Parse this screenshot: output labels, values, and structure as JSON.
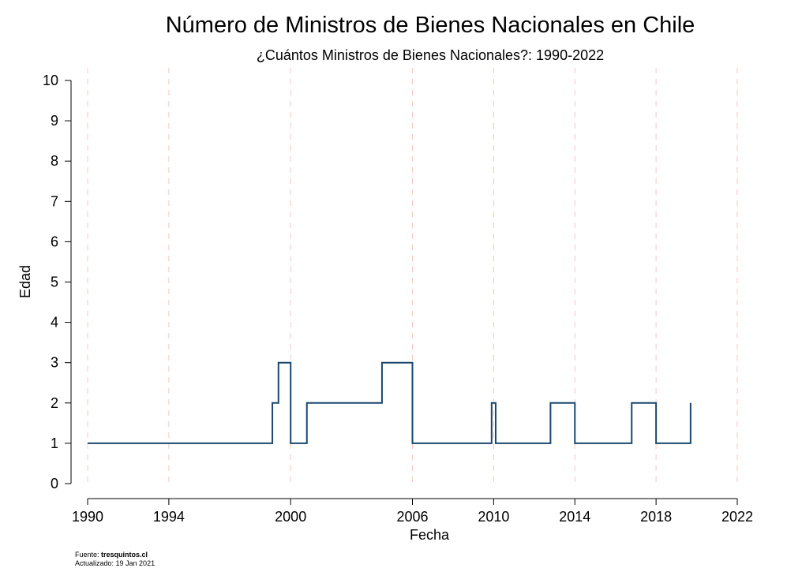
{
  "chart_data": {
    "type": "line",
    "step": true,
    "title": "Número de Ministros de Bienes Nacionales en Chile",
    "subtitle": "¿Cuántos Ministros de Bienes Nacionales?: 1990-2022",
    "xlabel": "Fecha",
    "ylabel": "Edad",
    "xlim": [
      1990,
      2022
    ],
    "ylim": [
      0,
      10
    ],
    "xticks": [
      "1990",
      "1994",
      "2000",
      "2006",
      "2010",
      "2014",
      "2018",
      "2022"
    ],
    "yticks": [
      "0",
      "1",
      "2",
      "3",
      "4",
      "5",
      "6",
      "7",
      "8",
      "9",
      "10"
    ],
    "grid": "vertical dashed at x ticks",
    "line_color": "#1a476f",
    "grid_color": "#f4c7c3",
    "series": [
      {
        "x": [
          1990.0,
          1999.1,
          1999.4,
          2000.0,
          2000.8,
          2004.5,
          2006.0,
          2009.9,
          2010.1,
          2012.8,
          2014.0,
          2016.8,
          2018.0,
          2019.7
        ],
        "y": [
          1,
          2,
          3,
          1,
          2,
          3,
          1,
          2,
          1,
          2,
          1,
          2,
          1,
          2
        ]
      }
    ]
  },
  "source": {
    "label": "Fuente:",
    "site": "tresquintos.cl",
    "updated": "Actualizado: 19 Jan 2021"
  }
}
